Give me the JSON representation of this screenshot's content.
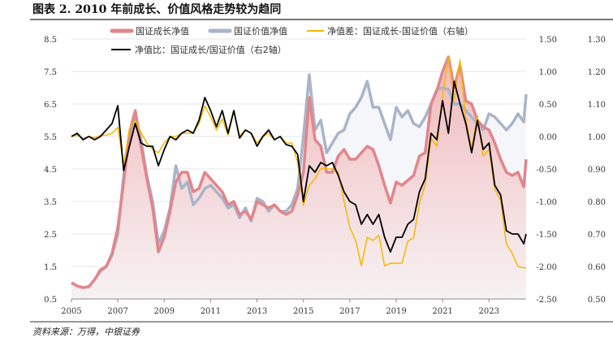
{
  "title": "图表 2. 2010 年前成长、价值风格走势较为趋同",
  "source": "资料来源：万得，中银证券",
  "chart_data": {
    "type": "line",
    "title": "图表 2. 2010 年前成长、价值风格走势较为趋同",
    "x_ticks": [
      "2005",
      "2007",
      "2009",
      "2011",
      "2013",
      "2015",
      "2017",
      "2019",
      "2021",
      "2023"
    ],
    "x_range": [
      2005,
      2024.6
    ],
    "y_left": {
      "ticks": [
        "8.5",
        "7.5",
        "6.5",
        "5.5",
        "4.5",
        "3.5",
        "2.5",
        "1.5",
        "0.5"
      ],
      "range": [
        0.5,
        8.5
      ]
    },
    "y_right": {
      "ticks": [
        "1.50",
        "1.00",
        "0.50",
        "0.00",
        "-0.50",
        "-1.00",
        "-1.50",
        "-2.00",
        "-2.50"
      ],
      "range": [
        -2.5,
        1.5
      ]
    },
    "y_right2": {
      "ticks": [
        "1.30",
        "1.20",
        "1.10",
        "1.00",
        "0.90",
        "0.80",
        "0.70",
        "0.60",
        "0.50"
      ],
      "range": [
        0.5,
        1.3
      ]
    },
    "grid": true,
    "legend_position": "top",
    "x": [
      2005,
      2005.25,
      2005.5,
      2005.75,
      2006,
      2006.25,
      2006.5,
      2006.75,
      2007,
      2007.25,
      2007.5,
      2007.75,
      2008,
      2008.25,
      2008.5,
      2008.75,
      2009,
      2009.25,
      2009.5,
      2009.75,
      2010,
      2010.25,
      2010.5,
      2010.75,
      2011,
      2011.25,
      2011.5,
      2011.75,
      2012,
      2012.25,
      2012.5,
      2012.75,
      2013,
      2013.25,
      2013.5,
      2013.75,
      2014,
      2014.25,
      2014.5,
      2014.75,
      2015,
      2015.25,
      2015.5,
      2015.75,
      2016,
      2016.25,
      2016.5,
      2016.75,
      2017,
      2017.25,
      2017.5,
      2017.75,
      2018,
      2018.25,
      2018.5,
      2018.75,
      2019,
      2019.25,
      2019.5,
      2019.75,
      2020,
      2020.25,
      2020.5,
      2020.75,
      2021,
      2021.25,
      2021.5,
      2021.75,
      2022,
      2022.25,
      2022.5,
      2022.75,
      2023,
      2023.25,
      2023.5,
      2023.75,
      2024,
      2024.25,
      2024.5,
      2024.6
    ],
    "series": [
      {
        "name": "国证成长净值",
        "axis": "left",
        "color": "#e0868c",
        "values": [
          1.0,
          0.9,
          0.85,
          0.88,
          1.1,
          1.4,
          1.5,
          1.9,
          2.7,
          4.1,
          5.6,
          6.3,
          5.2,
          4.2,
          3.3,
          1.95,
          2.4,
          3.2,
          4.1,
          4.4,
          4.4,
          3.8,
          3.9,
          4.4,
          4.2,
          4.0,
          3.8,
          3.4,
          3.5,
          3.1,
          3.2,
          2.95,
          3.5,
          3.4,
          3.3,
          3.4,
          3.2,
          3.1,
          3.2,
          3.7,
          4.4,
          6.7,
          5.4,
          5.2,
          4.4,
          4.4,
          4.9,
          5.1,
          4.8,
          4.8,
          5.0,
          5.2,
          5.1,
          4.6,
          4.0,
          3.45,
          4.1,
          4.0,
          4.15,
          4.3,
          4.9,
          5.0,
          6.5,
          6.9,
          7.5,
          7.95,
          7.0,
          7.7,
          6.6,
          6.5,
          6.0,
          5.8,
          5.7,
          5.3,
          4.8,
          4.4,
          4.3,
          4.4,
          3.95,
          4.8
        ]
      },
      {
        "name": "国证价值净值",
        "axis": "left",
        "color": "#a9b4c8",
        "values": [
          1.0,
          0.9,
          0.85,
          0.88,
          1.1,
          1.35,
          1.5,
          1.85,
          2.5,
          4.3,
          5.4,
          6.2,
          5.4,
          4.3,
          3.5,
          2.2,
          2.6,
          3.3,
          4.6,
          3.9,
          4.1,
          3.4,
          3.6,
          3.9,
          4.0,
          3.8,
          3.6,
          3.3,
          3.4,
          3.0,
          3.3,
          2.9,
          3.6,
          3.5,
          3.2,
          3.4,
          3.2,
          3.2,
          3.4,
          3.9,
          5.5,
          7.4,
          5.7,
          6.0,
          5.0,
          5.3,
          5.6,
          5.7,
          6.2,
          6.4,
          6.7,
          7.2,
          6.4,
          6.4,
          5.9,
          5.4,
          6.4,
          6.1,
          6.3,
          5.9,
          5.8,
          6.1,
          6.5,
          6.95,
          7.0,
          6.95,
          6.5,
          6.5,
          6.3,
          6.1,
          5.9,
          5.7,
          6.2,
          6.1,
          5.9,
          5.7,
          5.9,
          6.2,
          5.95,
          6.8
        ]
      },
      {
        "name": "净值差：国证成长-国证价值（右轴）",
        "axis": "right",
        "color": "#f5b800",
        "values": [
          0,
          0.02,
          -0.03,
          0,
          -0.02,
          0.02,
          0.02,
          0.05,
          0.14,
          -0.44,
          0.12,
          0.25,
          0.06,
          -0.1,
          -0.2,
          -0.25,
          -0.1,
          0,
          0,
          0.05,
          0.05,
          0.05,
          0.2,
          0.47,
          0.3,
          0.1,
          0.27,
          0.02,
          0.39,
          0.01,
          0.1,
          0.05,
          -0.1,
          0,
          0.05,
          -0.05,
          0,
          -0.1,
          -0.1,
          -0.4,
          -1.06,
          -0.75,
          -0.65,
          -0.49,
          -0.5,
          -0.5,
          -0.55,
          -0.99,
          -1.4,
          -1.6,
          -1.99,
          -1.55,
          -1.6,
          -1.52,
          -1.99,
          -1.95,
          -1.95,
          -1.95,
          -1.61,
          -1.56,
          -1.03,
          -0.74,
          -0.03,
          -0.15,
          0.64,
          1.22,
          0.56,
          1.18,
          0.26,
          -0.2,
          0.32,
          -0.3,
          -0.2,
          -0.81,
          -0.98,
          -1.65,
          -1.8,
          -2.0,
          -2.02,
          -2.02
        ]
      },
      {
        "name": "净值比：国证成长/国证价值（右2轴）",
        "axis": "right2",
        "color": "#000000",
        "values": [
          1.0,
          1.01,
          0.99,
          1.0,
          0.99,
          1.0,
          1.02,
          1.04,
          1.095,
          0.895,
          0.97,
          1.04,
          0.98,
          0.97,
          0.97,
          0.91,
          0.96,
          1.0,
          0.99,
          1.01,
          1.02,
          1.01,
          1.05,
          1.12,
          1.08,
          1.03,
          1.08,
          1.01,
          1.08,
          0.995,
          1.02,
          1.01,
          0.97,
          1.0,
          1.02,
          0.99,
          1.0,
          0.975,
          0.97,
          0.945,
          0.8,
          0.91,
          0.89,
          0.92,
          0.91,
          0.92,
          0.88,
          0.83,
          0.8,
          0.79,
          0.73,
          0.76,
          0.73,
          0.76,
          0.69,
          0.645,
          0.69,
          0.69,
          0.73,
          0.745,
          0.83,
          0.87,
          1.01,
          0.99,
          1.11,
          1.01,
          1.17,
          1.1,
          1.04,
          0.95,
          1.05,
          0.96,
          0.98,
          0.85,
          0.82,
          0.71,
          0.7,
          0.7,
          0.67,
          0.7
        ]
      }
    ]
  }
}
